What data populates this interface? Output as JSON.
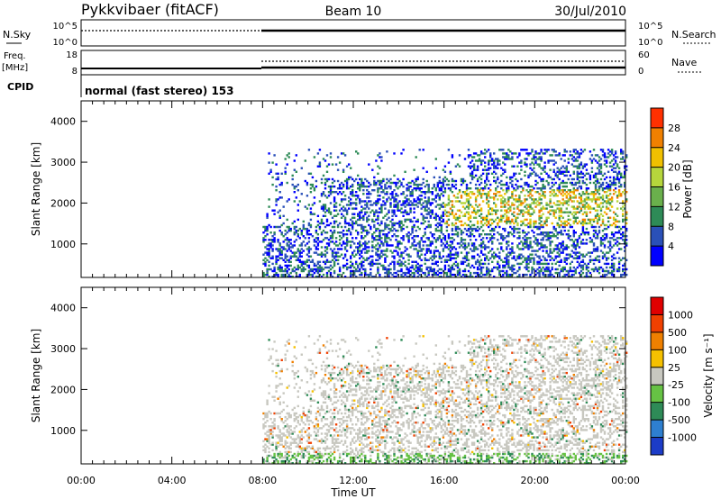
{
  "header": {
    "station": "Pykkvibaer (fitACF)",
    "beam": "Beam 10",
    "date": "30/Jul/2010"
  },
  "params": {
    "nsky_label": "N.Sky",
    "nsky_ticks": [
      "10^5",
      "10^0"
    ],
    "nsearch_label": "N.Search",
    "nsearch_ticks": [
      "10^5",
      "10^0"
    ],
    "freq_label": "Freq.",
    "freq_unit": "[MHz]",
    "freq_ticks": [
      "18",
      "8"
    ],
    "nave_label": "Nave",
    "nave_ticks": [
      "60",
      "0"
    ],
    "cpid_label": "CPID",
    "cpid_text": "normal (fast stereo) 153"
  },
  "colors": {
    "power": [
      "#0000ff",
      "#2a50b8",
      "#2e8b57",
      "#6ab04c",
      "#b6d63c",
      "#f0c000",
      "#f08000",
      "#ff3000",
      "#e00000"
    ],
    "velocity": [
      "#1c3cc8",
      "#2e7fd0",
      "#2e8b57",
      "#66c244",
      "#c8c8c0",
      "#f5c000",
      "#f08000",
      "#f04000",
      "#e00000"
    ]
  },
  "chart_data": [
    {
      "type": "heatmap",
      "name": "power",
      "ylabel": "Slant Range [km]",
      "ylim": [
        180,
        4500
      ],
      "yticks": [
        "1000",
        "2000",
        "3000",
        "4000"
      ],
      "colorbar_label": "Power [dB]",
      "colorbar_ticks": [
        "4",
        "8",
        "12",
        "16",
        "20",
        "24",
        "28"
      ],
      "colorbar_range": [
        0,
        32
      ],
      "note": "no data before 08:00 UT"
    },
    {
      "type": "heatmap",
      "name": "velocity",
      "xlabel": "Time UT",
      "xticks": [
        "00:00",
        "04:00",
        "08:00",
        "12:00",
        "16:00",
        "20:00",
        "00:00"
      ],
      "xlim_hours": [
        0,
        24
      ],
      "ylabel": "Slant Range [km]",
      "ylim": [
        180,
        4500
      ],
      "yticks": [
        "1000",
        "2000",
        "3000",
        "4000"
      ],
      "colorbar_label": "Velocity [m s⁻¹]",
      "colorbar_ticks": [
        "1000",
        "500",
        "100",
        "25",
        "-25",
        "-100",
        "-500",
        "-1000"
      ]
    }
  ]
}
